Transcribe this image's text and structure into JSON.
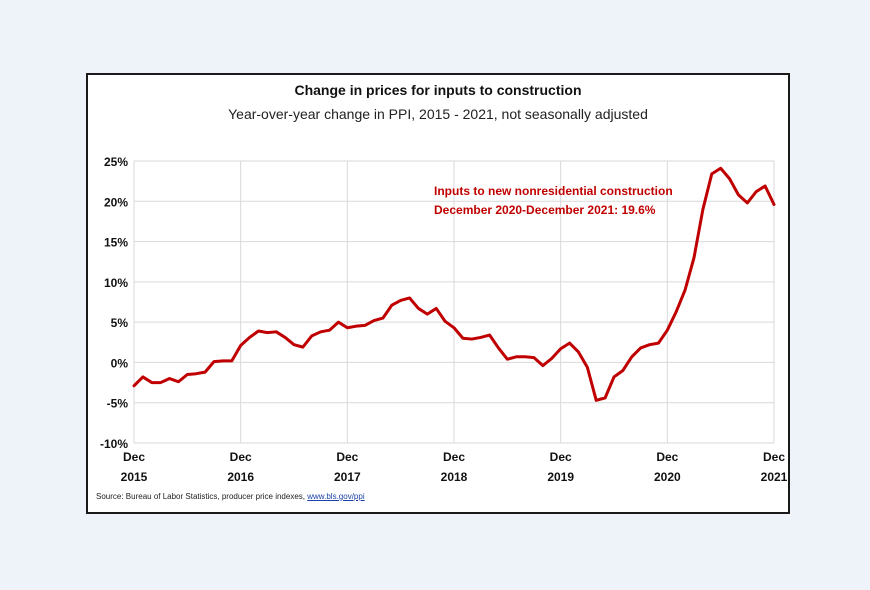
{
  "colors": {
    "line": "#c00000",
    "annotation": "#c00000",
    "grid": "#d9d9d9",
    "background": "#eef3f9"
  },
  "source": {
    "prefix": "Source: Bureau of Labor Statistics, producer price indexes, ",
    "link_text": "www.bls.gov/ppi"
  },
  "chart_data": {
    "type": "line",
    "title": "Change in prices for inputs to construction",
    "subtitle": "Year-over-year change in PPI, 2015 - 2021, not seasonally adjusted",
    "xlabel": "",
    "ylabel": "",
    "ylim": [
      -10,
      25
    ],
    "y_ticks": [
      {
        "value": 25,
        "label": "25%"
      },
      {
        "value": 20,
        "label": "20%"
      },
      {
        "value": 15,
        "label": "15%"
      },
      {
        "value": 10,
        "label": "10%"
      },
      {
        "value": 5,
        "label": "5%"
      },
      {
        "value": 0,
        "label": "0%"
      },
      {
        "value": -5,
        "label": "-5%"
      },
      {
        "value": -10,
        "label": "-10%"
      }
    ],
    "x_ticks": [
      {
        "month": 0,
        "line1": "Dec",
        "line2": "2015"
      },
      {
        "month": 12,
        "line1": "Dec",
        "line2": "2016"
      },
      {
        "month": 24,
        "line1": "Dec",
        "line2": "2017"
      },
      {
        "month": 36,
        "line1": "Dec",
        "line2": "2018"
      },
      {
        "month": 48,
        "line1": "Dec",
        "line2": "2019"
      },
      {
        "month": 60,
        "line1": "Dec",
        "line2": "2020"
      },
      {
        "month": 72,
        "line1": "Dec",
        "line2": "2021"
      }
    ],
    "grid": true,
    "series": [
      {
        "values": [
          -2.9,
          -1.8,
          -2.5,
          -2.5,
          -2.0,
          -2.4,
          -1.5,
          -1.4,
          -1.2,
          0.1,
          0.2,
          0.2,
          2.1,
          3.1,
          3.9,
          3.7,
          3.8,
          3.1,
          2.2,
          1.9,
          3.3,
          3.8,
          4.0,
          5.0,
          4.3,
          4.5,
          4.6,
          5.2,
          5.5,
          7.1,
          7.7,
          8.0,
          6.7,
          6.0,
          6.7,
          5.1,
          4.3,
          3.0,
          2.9,
          3.1,
          3.4,
          1.8,
          0.4,
          0.7,
          0.7,
          0.6,
          -0.4,
          0.5,
          1.7,
          2.4,
          1.3,
          -0.6,
          -4.7,
          -4.4,
          -1.8,
          -1.0,
          0.7,
          1.8,
          2.2,
          2.4,
          4.0,
          6.3,
          9.0,
          13.0,
          19.0,
          23.4,
          24.1,
          22.8,
          20.8,
          19.8,
          21.2,
          21.9,
          19.6
        ]
      }
    ],
    "annotations": [
      {
        "line1": "Inputs to new nonresidential construction",
        "line2": "December 2020-December 2021: 19.6%"
      }
    ]
  }
}
